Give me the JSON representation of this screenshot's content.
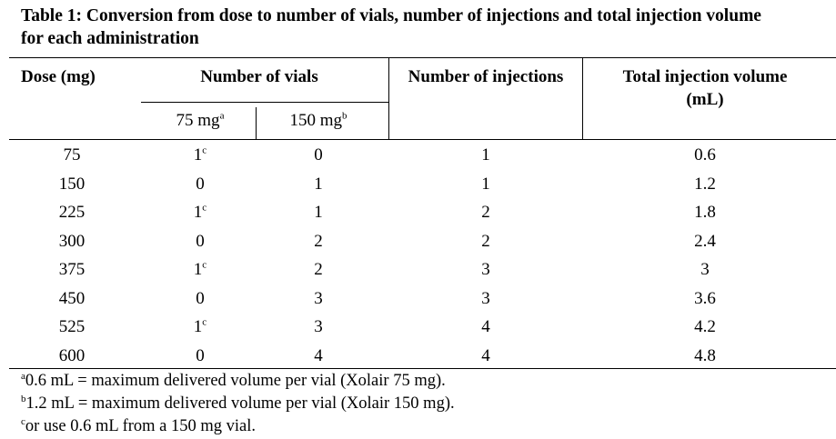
{
  "caption": {
    "line1": "Table 1: Conversion from dose to number of vials, number of injections and total injection volume",
    "line2": "for each administration"
  },
  "headers": {
    "dose": "Dose (mg)",
    "vials": "Number of vials",
    "injections": "Number of injections",
    "volume_line1": "Total injection volume",
    "volume_line2": "(mL)"
  },
  "subheaders": {
    "v75_text": "75 mg",
    "v75_sup": "a",
    "v150_text": "150 mg",
    "v150_sup": "b"
  },
  "rows": [
    {
      "dose": "75",
      "v75": "1",
      "v75_sup": "c",
      "v150": "0",
      "injections": "1",
      "volume": "0.6"
    },
    {
      "dose": "150",
      "v75": "0",
      "v75_sup": "",
      "v150": "1",
      "injections": "1",
      "volume": "1.2"
    },
    {
      "dose": "225",
      "v75": "1",
      "v75_sup": "c",
      "v150": "1",
      "injections": "2",
      "volume": "1.8"
    },
    {
      "dose": "300",
      "v75": "0",
      "v75_sup": "",
      "v150": "2",
      "injections": "2",
      "volume": "2.4"
    },
    {
      "dose": "375",
      "v75": "1",
      "v75_sup": "c",
      "v150": "2",
      "injections": "3",
      "volume": "3"
    },
    {
      "dose": "450",
      "v75": "0",
      "v75_sup": "",
      "v150": "3",
      "injections": "3",
      "volume": "3.6"
    },
    {
      "dose": "525",
      "v75": "1",
      "v75_sup": "c",
      "v150": "3",
      "injections": "4",
      "volume": "4.2"
    },
    {
      "dose": "600",
      "v75": "0",
      "v75_sup": "",
      "v150": "4",
      "injections": "4",
      "volume": "4.8"
    }
  ],
  "footnotes": [
    {
      "mark": "a",
      "text": "0.6 mL = maximum delivered volume per vial (Xolair 75 mg)."
    },
    {
      "mark": "b",
      "text": "1.2 mL = maximum delivered volume per vial (Xolair 150 mg)."
    },
    {
      "mark": "c",
      "text": "or use 0.6 mL from a 150 mg vial."
    }
  ]
}
